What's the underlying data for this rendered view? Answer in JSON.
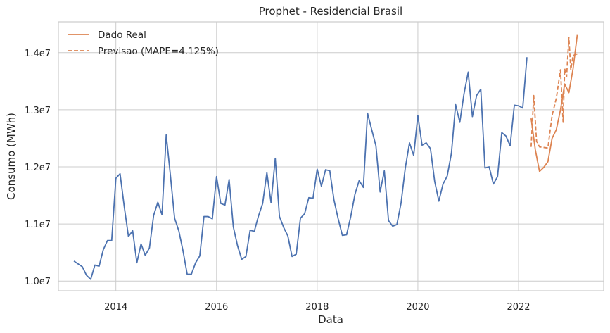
{
  "chart_data": {
    "type": "line",
    "title": "Prophet - Residencial Brasil",
    "xlabel": "Data",
    "ylabel": "Consumo (MWh)",
    "x_ticks": [
      "2014",
      "2016",
      "2018",
      "2020",
      "2022"
    ],
    "y_ticks": [
      "1.0e7",
      "1.1e7",
      "1.2e7",
      "1.3e7",
      "1.4e7"
    ],
    "x_range": [
      "2012-11-10",
      "2023-09-10"
    ],
    "ylim": [
      9830000,
      14540000
    ],
    "grid": true,
    "legend_position": "upper-left",
    "colors": {
      "history": "#4c72b0",
      "real": "#dd8452",
      "forecast": "#dd8452",
      "grid": "#cccccc"
    },
    "legend": [
      {
        "label": "Dado Real",
        "style": "solid",
        "series": "real"
      },
      {
        "label": "Previsao (MAPE=4.125%)",
        "style": "dashed",
        "series": "forecast"
      }
    ],
    "series": [
      {
        "key": "history",
        "style": "solid",
        "x": [
          "2013-03-01",
          "2013-04-01",
          "2013-05-01",
          "2013-06-01",
          "2013-07-01",
          "2013-08-01",
          "2013-09-01",
          "2013-10-01",
          "2013-11-01",
          "2013-12-01",
          "2014-01-01",
          "2014-02-01",
          "2014-03-01",
          "2014-04-01",
          "2014-05-01",
          "2014-06-01",
          "2014-07-01",
          "2014-08-01",
          "2014-09-01",
          "2014-10-01",
          "2014-11-01",
          "2014-12-01",
          "2015-01-01",
          "2015-02-01",
          "2015-03-01",
          "2015-04-01",
          "2015-05-01",
          "2015-06-01",
          "2015-07-01",
          "2015-08-01",
          "2015-09-01",
          "2015-10-01",
          "2015-11-01",
          "2015-12-01",
          "2016-01-01",
          "2016-02-01",
          "2016-03-01",
          "2016-04-01",
          "2016-05-01",
          "2016-06-01",
          "2016-07-01",
          "2016-08-01",
          "2016-09-01",
          "2016-10-01",
          "2016-11-01",
          "2016-12-01",
          "2017-01-01",
          "2017-02-01",
          "2017-03-01",
          "2017-04-01",
          "2017-05-01",
          "2017-06-01",
          "2017-07-01",
          "2017-08-01",
          "2017-09-01",
          "2017-10-01",
          "2017-11-01",
          "2017-12-01",
          "2018-01-01",
          "2018-02-01",
          "2018-03-01",
          "2018-04-01",
          "2018-05-01",
          "2018-06-01",
          "2018-07-01",
          "2018-08-01",
          "2018-09-01",
          "2018-10-01",
          "2018-11-01",
          "2018-12-01",
          "2019-01-01",
          "2019-02-01",
          "2019-03-01",
          "2019-04-01",
          "2019-05-01",
          "2019-06-01",
          "2019-07-01",
          "2019-08-01",
          "2019-09-01",
          "2019-10-01",
          "2019-11-01",
          "2019-12-01",
          "2020-01-01",
          "2020-02-01",
          "2020-03-01",
          "2020-04-01",
          "2020-05-01",
          "2020-06-01",
          "2020-07-01",
          "2020-08-01",
          "2020-09-01",
          "2020-10-01",
          "2020-11-01",
          "2020-12-01",
          "2021-01-01",
          "2021-02-01",
          "2021-03-01",
          "2021-04-01",
          "2021-05-01",
          "2021-06-01",
          "2021-07-01",
          "2021-08-01",
          "2021-09-01",
          "2021-10-01",
          "2021-11-01",
          "2021-12-01",
          "2022-01-01",
          "2022-02-01",
          "2022-03-01"
        ],
        "values": [
          10350000,
          10300000,
          10250000,
          10100000,
          10030000,
          10280000,
          10260000,
          10550000,
          10710000,
          10710000,
          11800000,
          11880000,
          11300000,
          10780000,
          10880000,
          10320000,
          10650000,
          10450000,
          10580000,
          11150000,
          11380000,
          11160000,
          12560000,
          11850000,
          11100000,
          10880000,
          10530000,
          10120000,
          10120000,
          10320000,
          10440000,
          11130000,
          11130000,
          11090000,
          11830000,
          11360000,
          11330000,
          11780000,
          10950000,
          10620000,
          10380000,
          10430000,
          10890000,
          10870000,
          11140000,
          11360000,
          11900000,
          11370000,
          12150000,
          11130000,
          10940000,
          10790000,
          10430000,
          10470000,
          11100000,
          11180000,
          11460000,
          11450000,
          11960000,
          11660000,
          11950000,
          11930000,
          11420000,
          11090000,
          10800000,
          10810000,
          11130000,
          11520000,
          11760000,
          11640000,
          12940000,
          12650000,
          12370000,
          11560000,
          11930000,
          11060000,
          10960000,
          10990000,
          11370000,
          11980000,
          12420000,
          12200000,
          12900000,
          12380000,
          12420000,
          12320000,
          11750000,
          11400000,
          11700000,
          11840000,
          12240000,
          13090000,
          12780000,
          13280000,
          13660000,
          12880000,
          13250000,
          13360000,
          11980000,
          12000000,
          11700000,
          11830000,
          12600000,
          12540000,
          12370000,
          13080000,
          13070000,
          13030000,
          13920000
        ]
      },
      {
        "key": "real",
        "style": "solid",
        "x": [
          "2022-04-01",
          "2022-05-01",
          "2022-06-01",
          "2022-07-01",
          "2022-08-01",
          "2022-09-01",
          "2022-10-01",
          "2022-11-01",
          "2022-12-01",
          "2023-01-01",
          "2023-02-01",
          "2023-03-01"
        ],
        "values": [
          12850000,
          12300000,
          11920000,
          11990000,
          12090000,
          12500000,
          12650000,
          13000000,
          13450000,
          13300000,
          13720000,
          14310000
        ]
      },
      {
        "key": "forecast",
        "style": "dashed",
        "x": [
          "2022-04-01",
          "2022-04-20",
          "2022-05-10",
          "2022-06-01",
          "2022-07-01",
          "2022-08-01",
          "2022-09-01",
          "2022-10-01",
          "2022-11-01",
          "2022-11-20",
          "2022-12-01",
          "2022-12-15",
          "2023-01-01",
          "2023-01-15",
          "2023-02-01",
          "2023-03-01"
        ],
        "values": [
          12350000,
          13250000,
          12450000,
          12350000,
          12340000,
          12330000,
          12900000,
          13200000,
          13700000,
          12780000,
          13720000,
          13580000,
          14270000,
          13700000,
          13950000,
          13980000
        ]
      }
    ]
  }
}
